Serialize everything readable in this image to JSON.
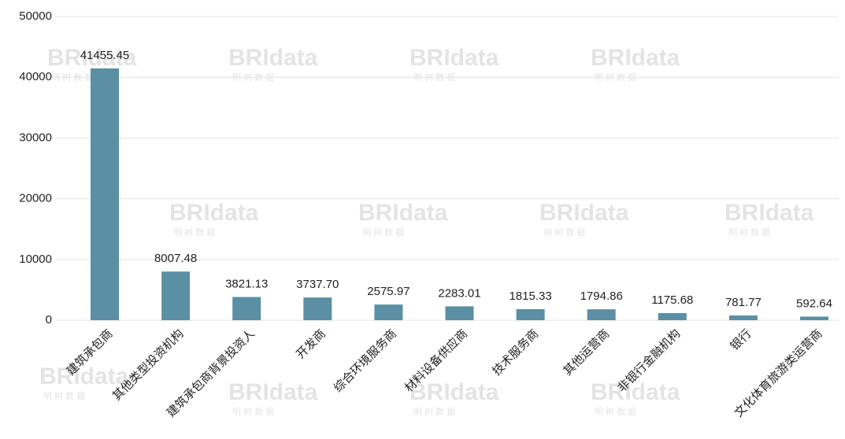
{
  "chart_data": {
    "type": "bar",
    "categories": [
      "建筑承包商",
      "其他类型投资机构",
      "建筑承包商背景投资人",
      "开发商",
      "综合环境服务商",
      "材料设备供应商",
      "技术服务商",
      "其他运营商",
      "非银行金融机构",
      "银行",
      "文化体育旅游类运营商"
    ],
    "values": [
      41455.45,
      8007.48,
      3821.13,
      3737.7,
      2575.97,
      2283.01,
      1815.33,
      1794.86,
      1175.68,
      781.77,
      592.64
    ],
    "value_labels": [
      "41455.45",
      "8007.48",
      "3821.13",
      "3737.70",
      "2575.97",
      "2283.01",
      "1815.33",
      "1794.86",
      "1175.68",
      "781.77",
      "592.64"
    ],
    "color": "#5b8fa3",
    "ylim": [
      0,
      50000
    ],
    "yticks": [
      0,
      10000,
      20000,
      30000,
      40000,
      50000
    ],
    "grid": true,
    "watermark": "BRIdata",
    "watermark_sub": "明 树 数 据"
  }
}
